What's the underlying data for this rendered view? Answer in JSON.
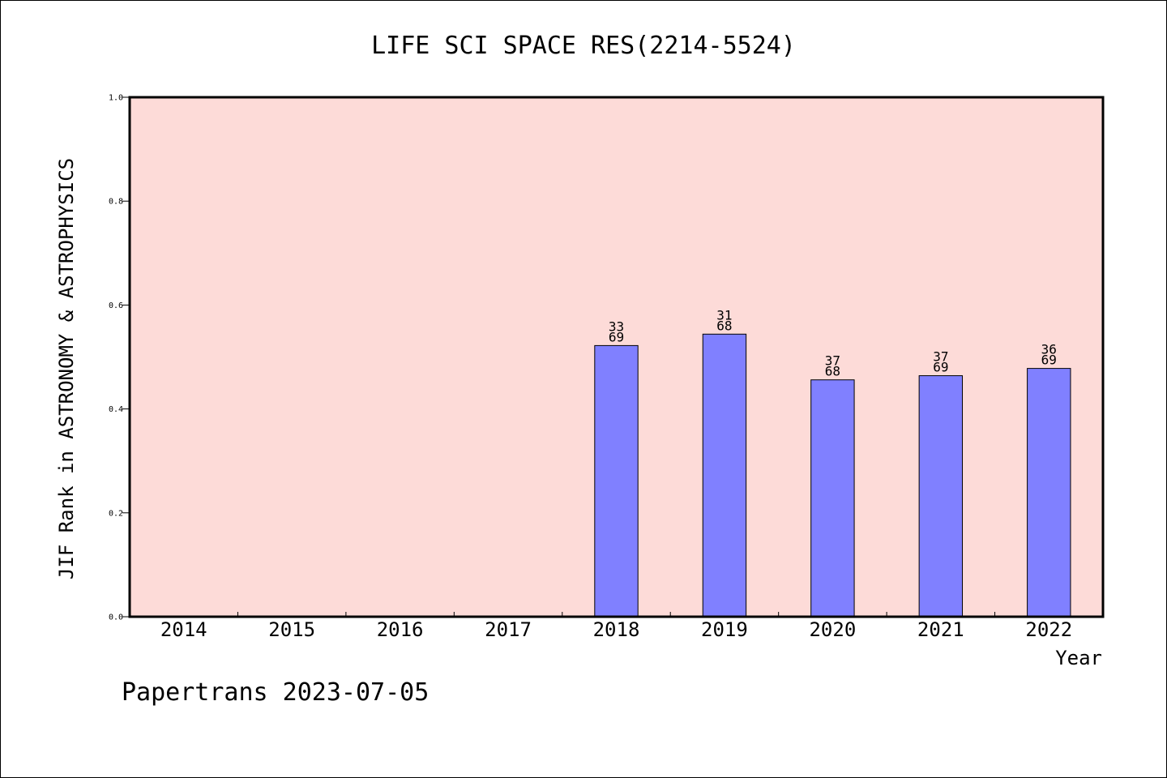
{
  "chart_data": {
    "type": "bar",
    "title": "LIFE SCI SPACE RES(2214-5524)",
    "xlabel": "Year",
    "ylabel": "JIF Rank in ASTRONOMY & ASTROPHYSICS",
    "categories": [
      "2014",
      "2015",
      "2016",
      "2017",
      "2018",
      "2019",
      "2020",
      "2021",
      "2022"
    ],
    "values": [
      null,
      null,
      null,
      null,
      0.522,
      0.544,
      0.456,
      0.464,
      0.478
    ],
    "data_labels": [
      null,
      null,
      null,
      null,
      {
        "rank": "33",
        "total": "69"
      },
      {
        "rank": "31",
        "total": "68"
      },
      {
        "rank": "37",
        "total": "68"
      },
      {
        "rank": "37",
        "total": "69"
      },
      {
        "rank": "36",
        "total": "69"
      }
    ],
    "ylim": [
      0,
      1.0
    ],
    "yticks": [
      "0.0",
      "0.2",
      "0.4",
      "0.6",
      "0.8",
      "1.0"
    ],
    "colors": {
      "plot_background": "#fddbd8",
      "bar_fill": "#8080ff",
      "bar_stroke": "#000000"
    },
    "grid": false
  },
  "footer": "Papertrans 2023-07-05"
}
